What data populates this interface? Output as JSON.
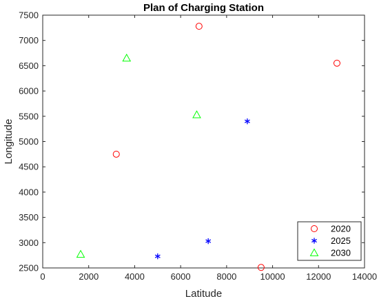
{
  "chart_data": {
    "type": "scatter",
    "title": "Plan of Charging Station",
    "xlabel": "Latitude",
    "ylabel": "Longitude",
    "xlim": [
      0,
      14000
    ],
    "ylim": [
      2500,
      7500
    ],
    "xticks": [
      0,
      2000,
      4000,
      6000,
      8000,
      10000,
      12000,
      14000
    ],
    "yticks": [
      2500,
      3000,
      3500,
      4000,
      4500,
      5000,
      5500,
      6000,
      6500,
      7000,
      7500
    ],
    "grid": false,
    "legend_position": "bottom-right",
    "series": [
      {
        "name": "2020",
        "marker": "circle",
        "color": "#ff0000",
        "points": [
          {
            "x": 3200,
            "y": 4750
          },
          {
            "x": 6800,
            "y": 7280
          },
          {
            "x": 12800,
            "y": 6550
          },
          {
            "x": 9500,
            "y": 2510
          }
        ]
      },
      {
        "name": "2025",
        "marker": "asterisk",
        "color": "#0000ff",
        "points": [
          {
            "x": 8900,
            "y": 5400
          },
          {
            "x": 7200,
            "y": 3030
          },
          {
            "x": 5000,
            "y": 2730
          }
        ]
      },
      {
        "name": "2030",
        "marker": "triangle",
        "color": "#00ff00",
        "points": [
          {
            "x": 3650,
            "y": 6650
          },
          {
            "x": 6700,
            "y": 5530
          },
          {
            "x": 1650,
            "y": 2770
          }
        ]
      }
    ]
  }
}
